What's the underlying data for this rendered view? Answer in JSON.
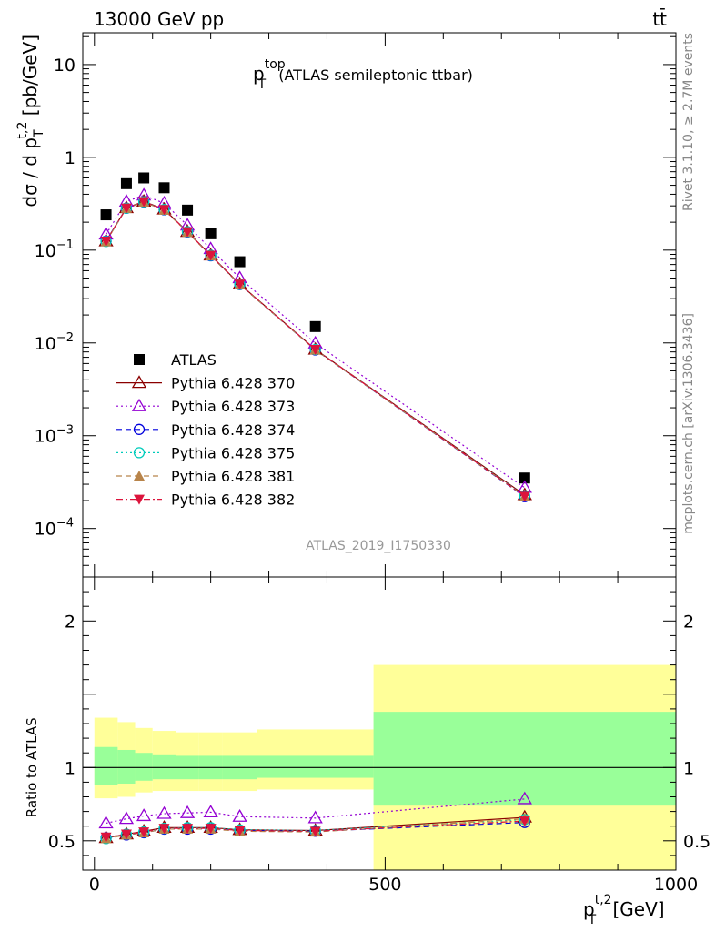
{
  "header": {
    "left": "13000 GeV pp",
    "right": "tt̄"
  },
  "side_text": {
    "rivet": "Rivet 3.1.10, ≥ 2.7M events",
    "mcplots": "mcplots.cern.ch [arXiv:1306.3436]"
  },
  "analysis_id": "ATLAS_2019_I1750330",
  "chart_data": [
    {
      "type": "scatter",
      "panel": "main",
      "title_main": "p",
      "title_sup": "top",
      "title_sub": "T",
      "title_rest": "(ATLAS semileptonic ttbar)",
      "ylabel_main": "dσ / d p",
      "ylabel_sup": "t,2",
      "ylabel_sub": "T",
      "ylabel_unit": "[pb/GeV]",
      "yscale": "log",
      "ylim": [
        3e-05,
        22
      ],
      "xlim": [
        -20,
        1000
      ],
      "ytick_labels": [
        {
          "value": 10,
          "mant": "10",
          "exp": ""
        },
        {
          "value": 1,
          "mant": "1",
          "exp": ""
        },
        {
          "value": 0.1,
          "mant": "10",
          "exp": "−1"
        },
        {
          "value": 0.01,
          "mant": "10",
          "exp": "−2"
        },
        {
          "value": 0.001,
          "mant": "10",
          "exp": "−3"
        },
        {
          "value": 0.0001,
          "mant": "10",
          "exp": "−4"
        }
      ],
      "legend_position": "lower-left",
      "x": [
        20,
        55,
        85,
        120,
        160,
        200,
        250,
        380,
        740
      ],
      "series": [
        {
          "name": "ATLAS",
          "style": "data",
          "marker": "square-filled",
          "color": "#000000",
          "values": [
            0.24,
            0.52,
            0.6,
            0.47,
            0.27,
            0.15,
            0.075,
            0.015,
            0.00035
          ]
        },
        {
          "name": "Pythia 6.428 370",
          "marker": "triangle-up-open",
          "dash": "solid",
          "color": "#8b0000",
          "values": [
            0.125,
            0.285,
            0.335,
            0.275,
            0.158,
            0.088,
            0.043,
            0.0085,
            0.00023
          ]
        },
        {
          "name": "Pythia 6.428 373",
          "marker": "triangle-up-open",
          "dash": "dotted",
          "color": "#9400d3",
          "values": [
            0.148,
            0.335,
            0.39,
            0.32,
            0.185,
            0.103,
            0.05,
            0.0099,
            0.000275
          ]
        },
        {
          "name": "Pythia 6.428 374",
          "marker": "circle-open",
          "dash": "dashed",
          "color": "#0000dd",
          "values": [
            0.125,
            0.283,
            0.33,
            0.272,
            0.157,
            0.087,
            0.0425,
            0.0084,
            0.00022
          ]
        },
        {
          "name": "Pythia 6.428 375",
          "marker": "circle-open",
          "dash": "dotted",
          "color": "#00ccbb",
          "values": [
            0.124,
            0.283,
            0.332,
            0.274,
            0.158,
            0.088,
            0.0428,
            0.0085,
            0.000225
          ]
        },
        {
          "name": "Pythia 6.428 381",
          "marker": "triangle-up-filled",
          "dash": "dashed",
          "color": "#b8844a",
          "values": [
            0.123,
            0.282,
            0.33,
            0.27,
            0.156,
            0.087,
            0.0425,
            0.0084,
            0.000222
          ]
        },
        {
          "name": "Pythia 6.428 382",
          "marker": "triangle-down-filled",
          "dash": "dashdot",
          "color": "#dc143c",
          "values": [
            0.125,
            0.284,
            0.333,
            0.274,
            0.158,
            0.088,
            0.043,
            0.0085,
            0.000222
          ]
        }
      ]
    },
    {
      "type": "scatter",
      "panel": "ratio",
      "ylabel": "Ratio to ATLAS",
      "ylim": [
        0.3,
        2.3
      ],
      "yticks": [
        0.5,
        1,
        2
      ],
      "ytick_labels": [
        "0.5",
        "1",
        "2"
      ],
      "xlim": [
        -20,
        1000
      ],
      "xticks": [
        0,
        500,
        1000
      ],
      "xtick_labels": [
        "0",
        "500",
        "1000"
      ],
      "xlabel_main": "p",
      "xlabel_sup": "t,2",
      "xlabel_sub": "T",
      "xlabel_unit": "[GeV]",
      "bands": {
        "edges": [
          0,
          40,
          70,
          100,
          140,
          180,
          220,
          280,
          480,
          1000
        ],
        "inner_low": [
          0.88,
          0.89,
          0.91,
          0.92,
          0.92,
          0.92,
          0.92,
          0.93,
          0.74
        ],
        "inner_high": [
          1.14,
          1.12,
          1.1,
          1.09,
          1.08,
          1.08,
          1.08,
          1.08,
          1.38
        ],
        "outer_low": [
          0.79,
          0.8,
          0.83,
          0.84,
          0.84,
          0.84,
          0.84,
          0.85,
          0.3
        ],
        "outer_high": [
          1.34,
          1.31,
          1.27,
          1.25,
          1.24,
          1.24,
          1.24,
          1.26,
          1.7
        ]
      },
      "x": [
        20,
        55,
        85,
        120,
        160,
        200,
        250,
        380,
        740
      ],
      "series": [
        {
          "name": "Pythia 6.428 370",
          "values": [
            0.52,
            0.545,
            0.565,
            0.59,
            0.59,
            0.59,
            0.575,
            0.57,
            0.66
          ]
        },
        {
          "name": "Pythia 6.428 373",
          "values": [
            0.62,
            0.65,
            0.67,
            0.685,
            0.69,
            0.695,
            0.665,
            0.655,
            0.785
          ]
        },
        {
          "name": "Pythia 6.428 374",
          "values": [
            0.52,
            0.54,
            0.555,
            0.58,
            0.58,
            0.58,
            0.57,
            0.565,
            0.625
          ]
        },
        {
          "name": "Pythia 6.428 375",
          "values": [
            0.515,
            0.545,
            0.56,
            0.585,
            0.59,
            0.59,
            0.575,
            0.57,
            0.645
          ]
        },
        {
          "name": "Pythia 6.428 381",
          "values": [
            0.515,
            0.54,
            0.555,
            0.58,
            0.58,
            0.58,
            0.565,
            0.56,
            0.65
          ]
        },
        {
          "name": "Pythia 6.428 382",
          "values": [
            0.525,
            0.545,
            0.56,
            0.585,
            0.585,
            0.585,
            0.57,
            0.565,
            0.635
          ]
        }
      ]
    }
  ]
}
